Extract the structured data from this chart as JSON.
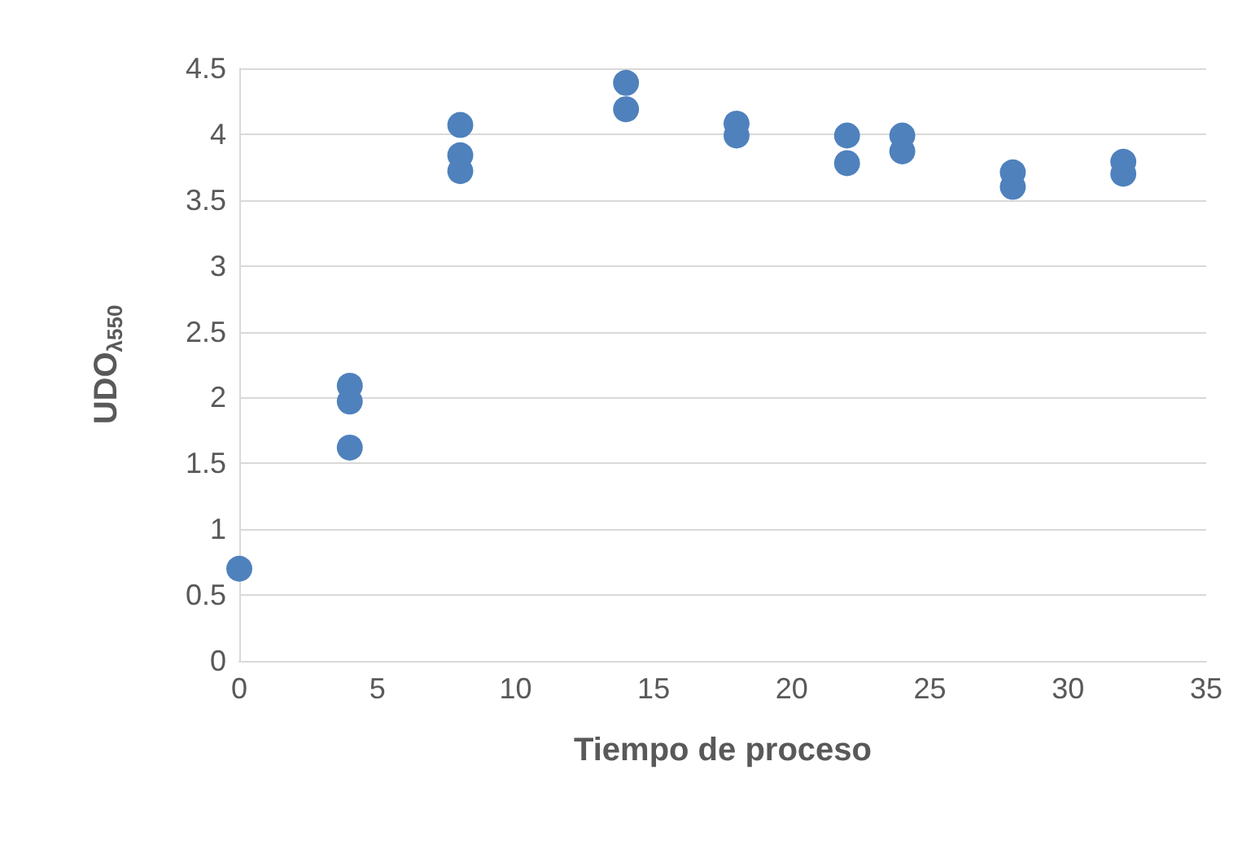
{
  "chart_data": {
    "type": "scatter",
    "xlabel": "Tiempo de proceso",
    "ylabel": "UDO$_{λ550}$",
    "x": [
      0,
      4,
      4,
      4,
      8,
      8,
      8,
      14,
      14,
      18,
      18,
      22,
      22,
      24,
      24,
      28,
      28,
      32,
      32
    ],
    "values": [
      0.7,
      2.09,
      1.97,
      1.62,
      4.07,
      3.84,
      3.72,
      4.39,
      4.19,
      4.08,
      3.99,
      3.99,
      3.78,
      3.99,
      3.87,
      3.71,
      3.6,
      3.79,
      3.7
    ],
    "color": "#4f81bd",
    "marker": "circle",
    "xlim": [
      0,
      35
    ],
    "xticks": [
      0,
      5,
      10,
      15,
      20,
      25,
      30,
      35
    ],
    "ylim": [
      0,
      4.5
    ],
    "yticks": [
      0,
      0.5,
      1,
      1.5,
      2,
      2.5,
      3,
      3.5,
      4,
      4.5
    ],
    "grid": "y"
  }
}
